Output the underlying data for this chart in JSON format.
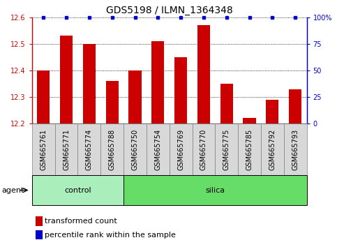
{
  "title": "GDS5198 / ILMN_1364348",
  "samples": [
    "GSM665761",
    "GSM665771",
    "GSM665774",
    "GSM665788",
    "GSM665750",
    "GSM665754",
    "GSM665769",
    "GSM665770",
    "GSM665775",
    "GSM665785",
    "GSM665792",
    "GSM665793"
  ],
  "red_values": [
    12.4,
    12.53,
    12.5,
    12.36,
    12.4,
    12.51,
    12.45,
    12.57,
    12.35,
    12.22,
    12.29,
    12.33
  ],
  "blue_values": [
    100,
    100,
    100,
    100,
    100,
    100,
    100,
    100,
    100,
    100,
    100,
    100
  ],
  "ylim_left": [
    12.2,
    12.6
  ],
  "ylim_right": [
    0,
    100
  ],
  "yticks_left": [
    12.2,
    12.3,
    12.4,
    12.5,
    12.6
  ],
  "yticks_right": [
    0,
    25,
    50,
    75,
    100
  ],
  "ytick_labels_right": [
    "0",
    "25",
    "50",
    "75",
    "100%"
  ],
  "control_count": 4,
  "silica_count": 8,
  "control_label": "control",
  "silica_label": "silica",
  "agent_label": "agent",
  "legend_red": "transformed count",
  "legend_blue": "percentile rank within the sample",
  "bar_color": "#cc0000",
  "dot_color": "#0000cc",
  "control_bg": "#aaeebb",
  "silica_bg": "#66dd66",
  "tick_label_bg": "#d8d8d8",
  "bar_width": 0.55,
  "title_fontsize": 10,
  "tick_fontsize": 7,
  "label_fontsize": 8,
  "agent_fontsize": 8
}
